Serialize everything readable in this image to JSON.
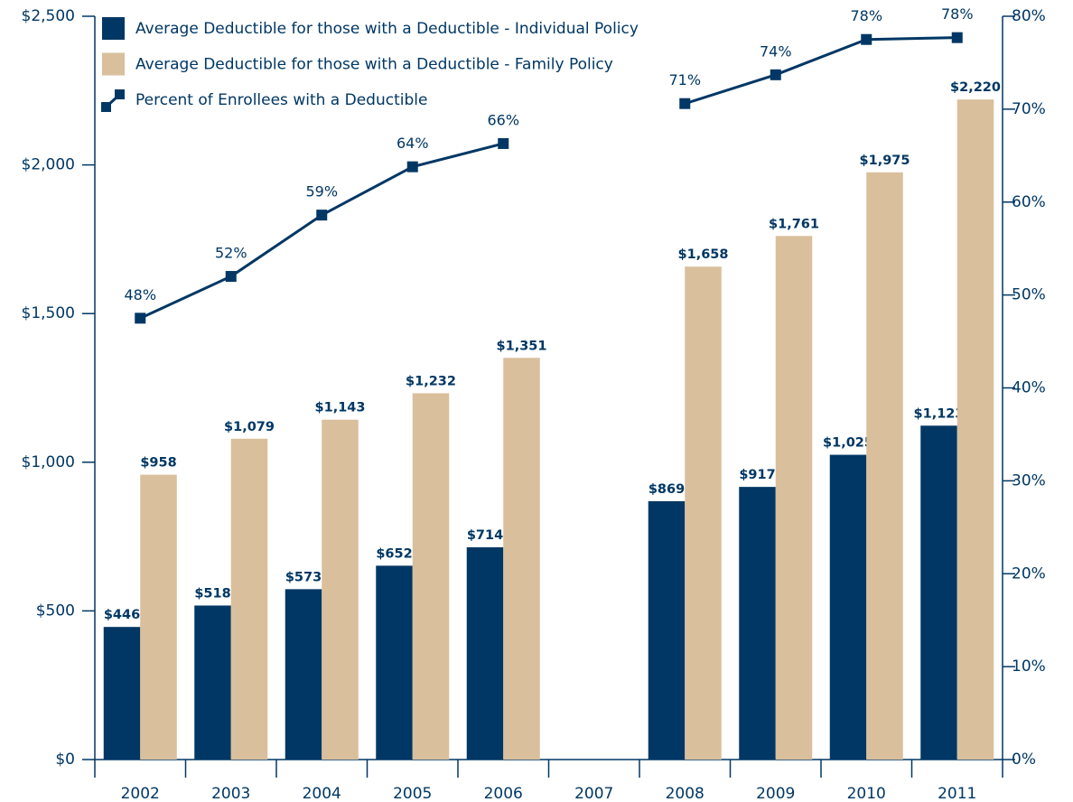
{
  "chart_data": {
    "type": "bar",
    "categories": [
      "2002",
      "2003",
      "2004",
      "2005",
      "2006",
      "2007",
      "2008",
      "2009",
      "2010",
      "2011"
    ],
    "series": [
      {
        "name": "Average Deductible for those with a Deductible - Individual Policy",
        "color": "#003764",
        "values": [
          446,
          518,
          573,
          652,
          714,
          null,
          869,
          917,
          1025,
          1123
        ],
        "value_labels": [
          "$446",
          "$518",
          "$573",
          "$652",
          "$714",
          null,
          "$869",
          "$917",
          "$1,025",
          "$1,123"
        ]
      },
      {
        "name": "Average Deductible for those with a Deductible - Family Policy",
        "color": "#d9bf9c",
        "values": [
          958,
          1079,
          1143,
          1232,
          1351,
          null,
          1658,
          1761,
          1975,
          2220
        ],
        "value_labels": [
          "$958",
          "$1,079",
          "$1,143",
          "$1,232",
          "$1,351",
          null,
          "$1,658",
          "$1,761",
          "$1,975",
          "$2,220"
        ]
      },
      {
        "name": "Percent of Enrollees with a Deductible",
        "color": "#003764",
        "type": "line",
        "axis": "y2",
        "values": [
          47.5,
          52,
          58.6,
          63.8,
          66.3,
          null,
          70.6,
          73.7,
          77.5,
          77.7
        ],
        "value_labels": [
          "48%",
          "52%",
          "59%",
          "64%",
          "66%",
          null,
          "71%",
          "74%",
          "78%",
          "78%"
        ]
      }
    ],
    "ylim": [
      0,
      2500
    ],
    "yticks": [
      {
        "value": 0,
        "label": "$0"
      },
      {
        "value": 500,
        "label": "$500"
      },
      {
        "value": 1000,
        "label": "$1,000"
      },
      {
        "value": 1500,
        "label": "$1,500"
      },
      {
        "value": 2000,
        "label": "$2,000"
      },
      {
        "value": 2500,
        "label": "$2,500"
      }
    ],
    "y2lim": [
      0,
      80
    ],
    "y2ticks": [
      {
        "value": 0,
        "label": "0%"
      },
      {
        "value": 10,
        "label": "10%"
      },
      {
        "value": 20,
        "label": "20%"
      },
      {
        "value": 30,
        "label": "30%"
      },
      {
        "value": 40,
        "label": "40%"
      },
      {
        "value": 50,
        "label": "50%"
      },
      {
        "value": 60,
        "label": "60%"
      },
      {
        "value": 70,
        "label": "70%"
      },
      {
        "value": 80,
        "label": "80%"
      }
    ],
    "legend": "upper left",
    "grid": false
  }
}
